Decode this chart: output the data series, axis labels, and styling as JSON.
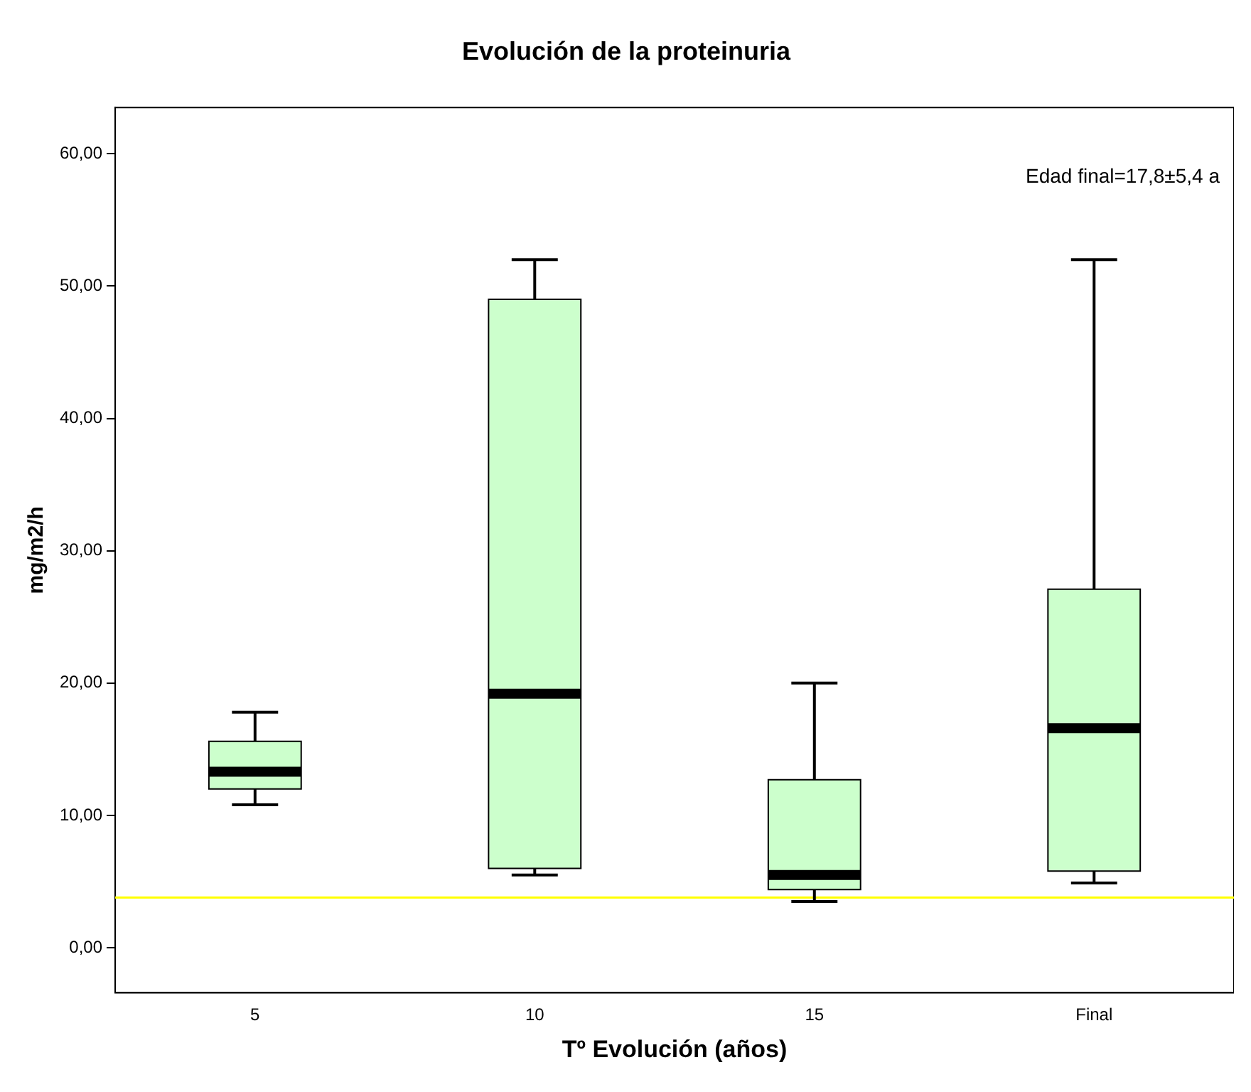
{
  "chart_data": {
    "type": "box",
    "title": "Evolución de la proteinuria",
    "xlabel": "Tº Evolución (años)",
    "ylabel": "mg/m2/h",
    "categories": [
      "5",
      "10",
      "15",
      "Final"
    ],
    "boxes": [
      {
        "low": 10.8,
        "q1": 12.0,
        "median": 13.3,
        "q3": 15.6,
        "high": 17.8
      },
      {
        "low": 5.5,
        "q1": 6.0,
        "median": 19.2,
        "q3": 49.0,
        "high": 52.0
      },
      {
        "low": 3.5,
        "q1": 4.4,
        "median": 5.5,
        "q3": 12.7,
        "high": 20.0
      },
      {
        "low": 4.9,
        "q1": 5.8,
        "median": 16.6,
        "q3": 27.1,
        "high": 52.0
      }
    ],
    "color": "#ccffcc",
    "ylim": [
      -3.4,
      63.5
    ],
    "yticks": [
      {
        "value": 0,
        "label": "0,00"
      },
      {
        "value": 10,
        "label": "10,00"
      },
      {
        "value": 20,
        "label": "20,00"
      },
      {
        "value": 30,
        "label": "30,00"
      },
      {
        "value": 40,
        "label": "40,00"
      },
      {
        "value": 50,
        "label": "50,00"
      },
      {
        "value": 60,
        "label": "60,00"
      }
    ],
    "ref_lines": [
      {
        "axis": "y",
        "value": 3.8,
        "color": "#ffff00"
      }
    ],
    "annotations": [
      "Edad final=17,8±5,4 a"
    ],
    "grid": false,
    "legend": false
  }
}
